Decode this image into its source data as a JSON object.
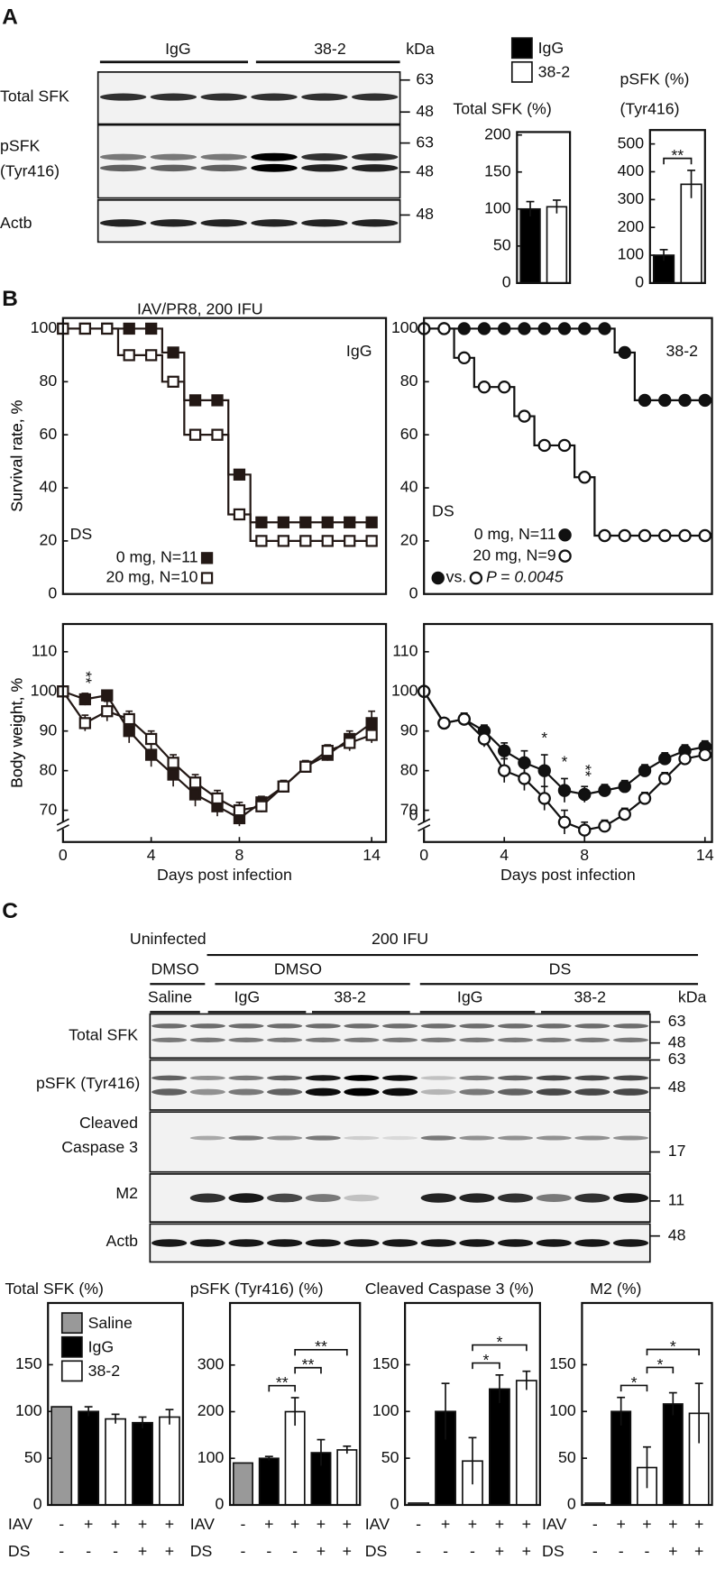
{
  "panel_labels": [
    "A",
    "B",
    "C"
  ],
  "blot_a": {
    "groups": [
      "IgG",
      "38-2"
    ],
    "unit": "kDa",
    "rows": [
      {
        "label": [
          "Total SFK"
        ],
        "markers": [
          63,
          48
        ]
      },
      {
        "label": [
          "pSFK",
          "(Tyr416)"
        ],
        "markers": [
          63,
          48
        ]
      },
      {
        "label": [
          "Actb"
        ],
        "markers": [
          48
        ]
      }
    ]
  },
  "blot_c": {
    "condition_headers": [
      "Uninfected",
      "200 IFU"
    ],
    "treatment_headers": [
      "DMSO",
      "DMSO",
      "DS"
    ],
    "group_headers": [
      "Saline",
      "IgG",
      "38-2",
      "IgG",
      "38-2"
    ],
    "unit": "kDa",
    "rows": [
      {
        "label": [
          "Total SFK"
        ],
        "markers": [
          63,
          48
        ]
      },
      {
        "label": [
          "pSFK (Tyr416)"
        ],
        "markers": [
          63,
          48
        ]
      },
      {
        "label": [
          "Cleaved",
          "Caspase 3"
        ],
        "markers": [
          17
        ]
      },
      {
        "label": [
          "M2"
        ],
        "markers": [
          11
        ]
      },
      {
        "label": [
          "Actb"
        ],
        "markers": [
          48
        ]
      }
    ]
  },
  "chart_data": [
    {
      "type": "bar",
      "title": "Total SFK (%)",
      "values": [
        100,
        103
      ],
      "errors": [
        10,
        9
      ],
      "colors": [
        "#000000",
        "#ffffff"
      ],
      "ylim": [
        0,
        204
      ],
      "yticks": [
        0,
        50,
        100,
        150,
        200
      ],
      "legend": [
        {
          "name": "IgG",
          "color": "#000000"
        },
        {
          "name": "38-2",
          "color": "#ffffff"
        }
      ]
    },
    {
      "type": "bar",
      "title": "pSFK (%)",
      "subtitle": "(Tyr416)",
      "values": [
        100,
        355
      ],
      "errors": [
        20,
        50
      ],
      "colors": [
        "#000000",
        "#ffffff"
      ],
      "ylim": [
        0,
        550
      ],
      "yticks": [
        0,
        100,
        200,
        300,
        400,
        500
      ],
      "significance": [
        {
          "from": 0,
          "to": 1,
          "label": "**"
        }
      ]
    },
    {
      "type": "survival",
      "title": "IAV/PR8, 200 IFU",
      "label": "IgG",
      "y_label": "Survival rate, %",
      "legend_title": "DS",
      "x": [
        0,
        1,
        2,
        3,
        4,
        5,
        6,
        7,
        8,
        9,
        10,
        11,
        12,
        13,
        14
      ],
      "series": [
        {
          "name": "0 mg, N=11",
          "marker": "square",
          "filled": true,
          "color": "#231815",
          "values": [
            100,
            100,
            100,
            100,
            100,
            91,
            73,
            73,
            45,
            27,
            27,
            27,
            27,
            27,
            27
          ]
        },
        {
          "name": "20 mg, N=10",
          "marker": "square",
          "filled": false,
          "color": "#231815",
          "values": [
            100,
            100,
            100,
            90,
            90,
            80,
            60,
            60,
            30,
            20,
            20,
            20,
            20,
            20,
            20
          ]
        }
      ],
      "xlim": [
        0,
        14.65
      ],
      "ylim": [
        0,
        104
      ],
      "yticks": [
        0,
        20,
        40,
        60,
        80,
        100
      ]
    },
    {
      "type": "survival",
      "label": "38-2",
      "y_label": "Survival rate, %",
      "legend_title": "DS",
      "comparison": "vs.",
      "p_value": "P = 0.0045",
      "x": [
        0,
        1,
        2,
        3,
        4,
        5,
        6,
        7,
        8,
        9,
        10,
        11,
        12,
        13,
        14
      ],
      "series": [
        {
          "name": "0 mg, N=11",
          "marker": "circle",
          "filled": true,
          "color": "#111111",
          "values": [
            100,
            100,
            100,
            100,
            100,
            100,
            100,
            100,
            100,
            100,
            91,
            73,
            73,
            73,
            73
          ]
        },
        {
          "name": "20 mg, N=9",
          "marker": "circle",
          "filled": false,
          "color": "#111111",
          "values": [
            100,
            100,
            89,
            78,
            78,
            67,
            56,
            56,
            44,
            22,
            22,
            22,
            22,
            22,
            22
          ]
        }
      ],
      "xlim": [
        0,
        14.35
      ],
      "ylim": [
        0,
        104
      ],
      "yticks": [
        0,
        20,
        40,
        60,
        80,
        100
      ]
    },
    {
      "type": "line_error",
      "y_label": "Body weight, %",
      "x_label": "Days post infection",
      "x": [
        0,
        1,
        2,
        3,
        4,
        5,
        6,
        7,
        8,
        9,
        10,
        11,
        12,
        13,
        14
      ],
      "series": [
        {
          "marker": "square",
          "filled": true,
          "color": "#231815",
          "values": [
            100,
            98,
            99,
            90,
            84,
            79,
            74,
            71,
            68,
            72,
            76,
            81,
            84,
            88,
            92
          ],
          "errors": [
            0,
            1.5,
            1,
            3,
            3,
            3,
            3,
            2.5,
            2,
            1.5,
            1.5,
            1.5,
            1.5,
            2,
            3
          ]
        },
        {
          "marker": "square",
          "filled": false,
          "color": "#231815",
          "values": [
            100,
            92,
            95,
            93,
            88,
            82,
            77,
            73,
            70,
            71,
            76,
            81,
            85,
            87,
            89
          ],
          "errors": [
            0,
            2,
            2.5,
            2,
            2,
            2,
            2,
            2,
            2,
            1.5,
            1.5,
            1.5,
            1.5,
            2,
            2
          ]
        }
      ],
      "xlim": [
        0,
        14.65
      ],
      "xticks": [
        0,
        4,
        8,
        14
      ],
      "ylim": [
        62,
        117
      ],
      "yticks": [
        70,
        80,
        90,
        100,
        110
      ],
      "significance": [
        {
          "x": 1,
          "label": "**"
        }
      ]
    },
    {
      "type": "line_error",
      "y_label": "Body weight, %",
      "x_label": "Days post infection",
      "break_label": 0,
      "x": [
        0,
        1,
        2,
        3,
        4,
        5,
        6,
        7,
        8,
        9,
        10,
        11,
        12,
        13,
        14
      ],
      "series": [
        {
          "marker": "circle",
          "filled": true,
          "color": "#111111",
          "values": [
            100,
            92,
            93,
            90,
            85,
            82,
            80,
            75,
            74,
            75,
            76,
            80,
            83,
            85,
            86
          ],
          "errors": [
            0,
            1,
            1.5,
            1.5,
            2,
            3,
            4,
            3,
            2,
            1.5,
            1.5,
            1.5,
            1.5,
            1.5,
            1.5
          ]
        },
        {
          "marker": "circle",
          "filled": false,
          "color": "#111111",
          "values": [
            100,
            92,
            93,
            88,
            80,
            78,
            73,
            67,
            65,
            66,
            69,
            73,
            78,
            83,
            84
          ],
          "errors": [
            0,
            1,
            1.5,
            2,
            3,
            3,
            3,
            3,
            2,
            1.5,
            1.5,
            1.5,
            1.5,
            1.5,
            1.5
          ]
        }
      ],
      "xlim": [
        0,
        14.35
      ],
      "xticks": [
        0,
        4,
        8,
        14
      ],
      "ylim": [
        62,
        117
      ],
      "yticks": [
        70,
        80,
        90,
        100,
        110
      ],
      "significance": [
        {
          "x": 6,
          "label": "*"
        },
        {
          "x": 7,
          "label": "*"
        },
        {
          "x": 8,
          "label": "**"
        }
      ]
    },
    {
      "type": "bar",
      "title": "Total SFK (%)",
      "values": [
        105,
        100,
        92,
        88,
        94
      ],
      "errors": [
        null,
        5,
        5,
        6,
        8
      ],
      "colors": [
        "#999999",
        "#000000",
        "#ffffff",
        "#000000",
        "#ffffff"
      ],
      "ylim": [
        0,
        216
      ],
      "yticks": [
        0,
        50,
        100,
        150
      ],
      "rows": [
        {
          "name": "IAV",
          "values": [
            "-",
            "+",
            "+",
            "+",
            "+"
          ]
        },
        {
          "name": "DS",
          "values": [
            "-",
            "-",
            "-",
            "+",
            "+"
          ]
        }
      ],
      "legend": [
        {
          "name": "Saline",
          "color": "#999999"
        },
        {
          "name": "IgG",
          "color": "#000000"
        },
        {
          "name": "38-2",
          "color": "#ffffff"
        }
      ]
    },
    {
      "type": "bar",
      "title": "pSFK (Tyr416) (%)",
      "values": [
        90,
        100,
        200,
        112,
        118
      ],
      "errors": [
        null,
        4,
        30,
        28,
        8
      ],
      "colors": [
        "#999999",
        "#000000",
        "#ffffff",
        "#000000",
        "#ffffff"
      ],
      "ylim": [
        0,
        433
      ],
      "yticks": [
        0,
        100,
        200,
        300
      ],
      "rows": [
        {
          "name": "IAV",
          "values": [
            "-",
            "+",
            "+",
            "+",
            "+"
          ]
        },
        {
          "name": "DS",
          "values": [
            "-",
            "-",
            "-",
            "+",
            "+"
          ]
        }
      ],
      "significance": [
        {
          "from": 1,
          "to": 2,
          "label": "**"
        },
        {
          "from": 2,
          "to": 3,
          "label": "**"
        },
        {
          "from": 2,
          "to": 4,
          "label": "**"
        }
      ]
    },
    {
      "type": "bar",
      "title": "Cleaved Caspase 3 (%)",
      "values": [
        2,
        100,
        47,
        124,
        133
      ],
      "errors": [
        null,
        30,
        25,
        15,
        10
      ],
      "colors": [
        "#999999",
        "#000000",
        "#ffffff",
        "#000000",
        "#ffffff"
      ],
      "ylim": [
        0,
        216
      ],
      "yticks": [
        0,
        50,
        100,
        150
      ],
      "rows": [
        {
          "name": "IAV",
          "values": [
            "-",
            "+",
            "+",
            "+",
            "+"
          ]
        },
        {
          "name": "DS",
          "values": [
            "-",
            "-",
            "-",
            "+",
            "+"
          ]
        }
      ],
      "significance": [
        {
          "from": 2,
          "to": 3,
          "label": "*"
        },
        {
          "from": 2,
          "to": 4,
          "label": "*"
        }
      ]
    },
    {
      "type": "bar",
      "title": "M2 (%)",
      "values": [
        2,
        100,
        40,
        108,
        98
      ],
      "errors": [
        null,
        15,
        22,
        12,
        32
      ],
      "colors": [
        "#999999",
        "#000000",
        "#ffffff",
        "#000000",
        "#ffffff"
      ],
      "ylim": [
        0,
        216
      ],
      "yticks": [
        0,
        50,
        100,
        150
      ],
      "rows": [
        {
          "name": "IAV",
          "values": [
            "-",
            "+",
            "+",
            "+",
            "+"
          ]
        },
        {
          "name": "DS",
          "values": [
            "-",
            "-",
            "-",
            "+",
            "+"
          ]
        }
      ],
      "significance": [
        {
          "from": 1,
          "to": 2,
          "label": "*"
        },
        {
          "from": 2,
          "to": 3,
          "label": "*"
        },
        {
          "from": 2,
          "to": 4,
          "label": "*"
        }
      ]
    }
  ]
}
